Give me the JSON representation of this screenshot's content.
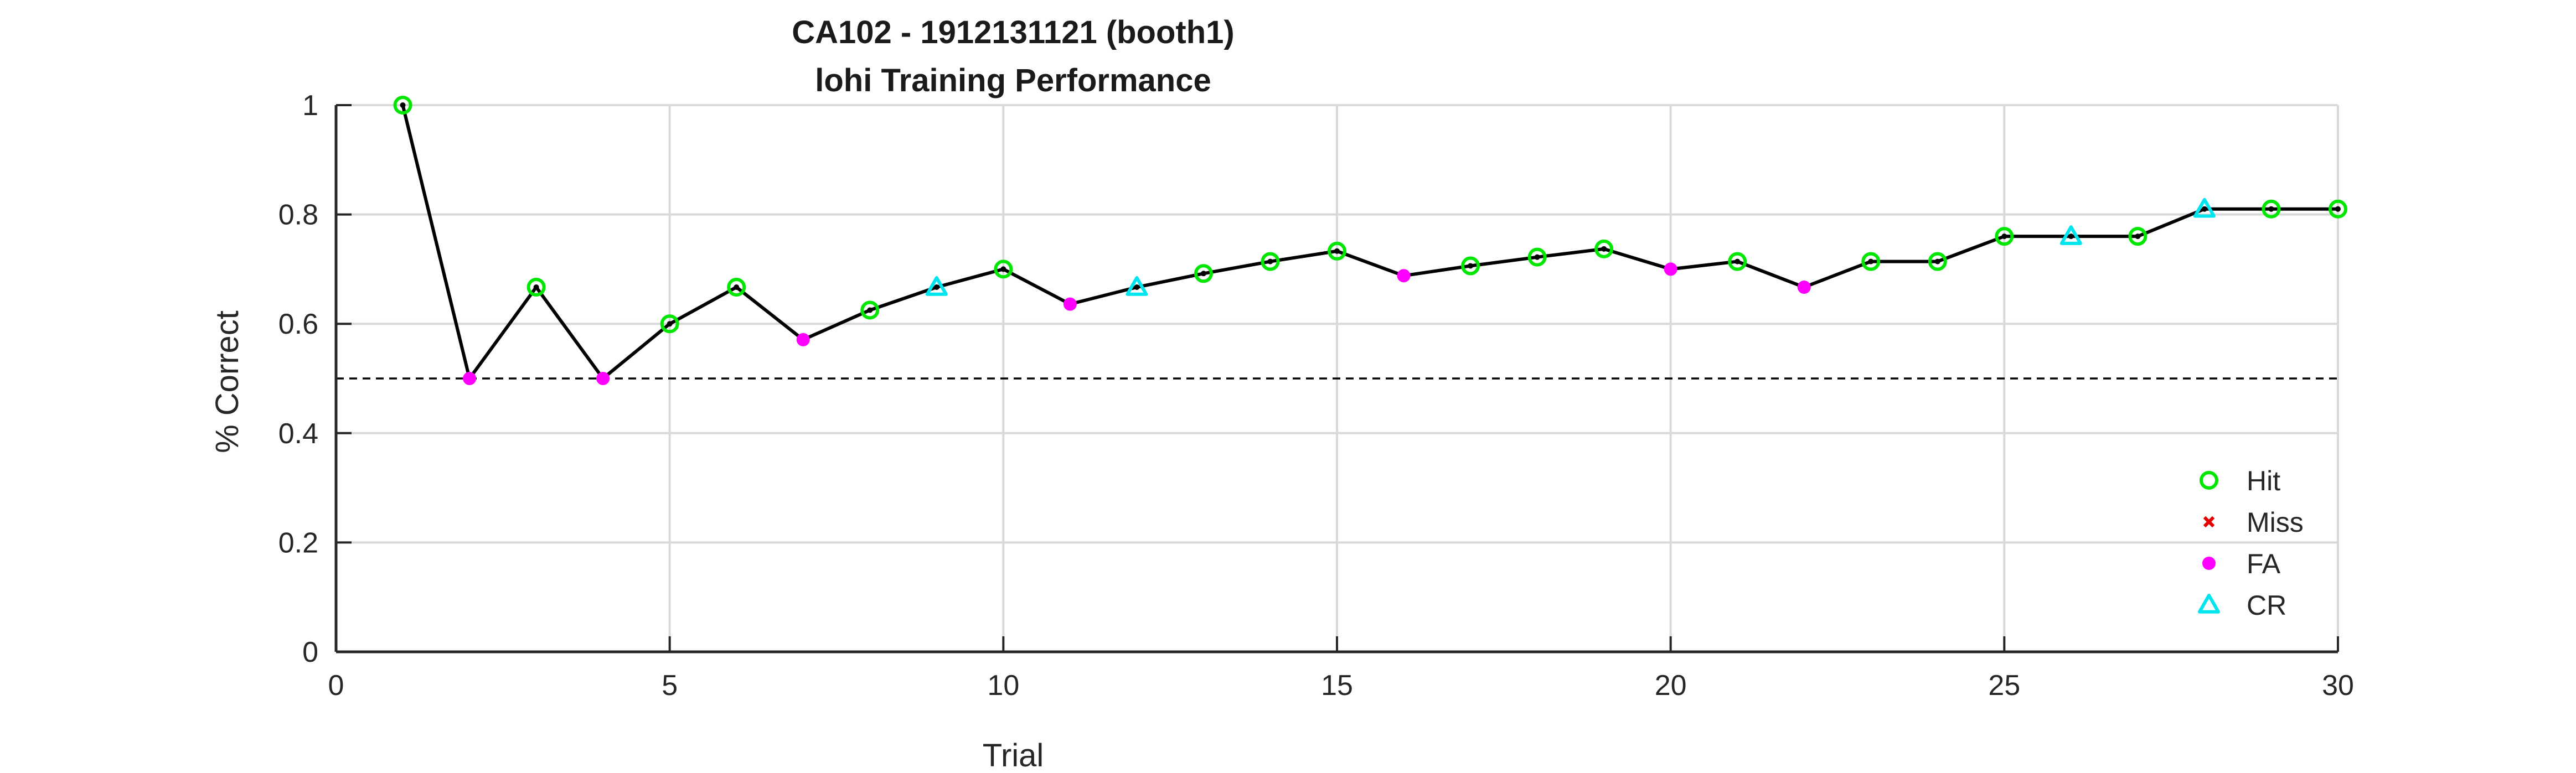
{
  "chart_data": {
    "type": "line",
    "title": "CA102 - 1912131121 (booth1)",
    "subtitle": "lohi Training Performance",
    "xlabel": "Trial",
    "ylabel": "% Correct",
    "xlim": [
      0,
      30
    ],
    "ylim": [
      0,
      1
    ],
    "xticks": [
      0,
      5,
      10,
      15,
      20,
      25,
      30
    ],
    "yticks": [
      0,
      0.2,
      0.4,
      0.6,
      0.8,
      1
    ],
    "ytick_labels": [
      "0",
      "0.2",
      "0.4",
      "0.6",
      "0.8",
      "1"
    ],
    "grid": true,
    "reference_line": {
      "y": 0.5,
      "style": "dashed"
    },
    "legend_position": "bottom-right",
    "line_color": "#000000",
    "categories": [
      {
        "name": "Hit",
        "marker": "circle",
        "color": "#00e600"
      },
      {
        "name": "Miss",
        "marker": "x",
        "color": "#e60000"
      },
      {
        "name": "FA",
        "marker": "dot",
        "color": "#ff00ff"
      },
      {
        "name": "CR",
        "marker": "triangle",
        "color": "#00e5ee"
      }
    ],
    "points": [
      {
        "x": 1,
        "y": 1.0,
        "outcome": "Hit"
      },
      {
        "x": 2,
        "y": 0.5,
        "outcome": "FA"
      },
      {
        "x": 3,
        "y": 0.667,
        "outcome": "Hit"
      },
      {
        "x": 4,
        "y": 0.5,
        "outcome": "FA"
      },
      {
        "x": 5,
        "y": 0.6,
        "outcome": "Hit"
      },
      {
        "x": 6,
        "y": 0.667,
        "outcome": "Hit"
      },
      {
        "x": 7,
        "y": 0.571,
        "outcome": "FA"
      },
      {
        "x": 8,
        "y": 0.625,
        "outcome": "Hit"
      },
      {
        "x": 9,
        "y": 0.667,
        "outcome": "CR"
      },
      {
        "x": 10,
        "y": 0.7,
        "outcome": "Hit"
      },
      {
        "x": 11,
        "y": 0.636,
        "outcome": "FA"
      },
      {
        "x": 12,
        "y": 0.667,
        "outcome": "CR"
      },
      {
        "x": 13,
        "y": 0.692,
        "outcome": "Hit"
      },
      {
        "x": 14,
        "y": 0.714,
        "outcome": "Hit"
      },
      {
        "x": 15,
        "y": 0.733,
        "outcome": "Hit"
      },
      {
        "x": 16,
        "y": 0.688,
        "outcome": "FA"
      },
      {
        "x": 17,
        "y": 0.706,
        "outcome": "Hit"
      },
      {
        "x": 18,
        "y": 0.722,
        "outcome": "Hit"
      },
      {
        "x": 19,
        "y": 0.737,
        "outcome": "Hit"
      },
      {
        "x": 20,
        "y": 0.7,
        "outcome": "FA"
      },
      {
        "x": 21,
        "y": 0.714,
        "outcome": "Hit"
      },
      {
        "x": 22,
        "y": 0.667,
        "outcome": "FA"
      },
      {
        "x": 23,
        "y": 0.714,
        "outcome": "Hit"
      },
      {
        "x": 24,
        "y": 0.714,
        "outcome": "Hit"
      },
      {
        "x": 25,
        "y": 0.76,
        "outcome": "Hit"
      },
      {
        "x": 26,
        "y": 0.76,
        "outcome": "CR"
      },
      {
        "x": 27,
        "y": 0.76,
        "outcome": "Hit"
      },
      {
        "x": 28,
        "y": 0.81,
        "outcome": "CR"
      },
      {
        "x": 29,
        "y": 0.81,
        "outcome": "Hit"
      },
      {
        "x": 30,
        "y": 0.81,
        "outcome": "Hit"
      }
    ]
  }
}
